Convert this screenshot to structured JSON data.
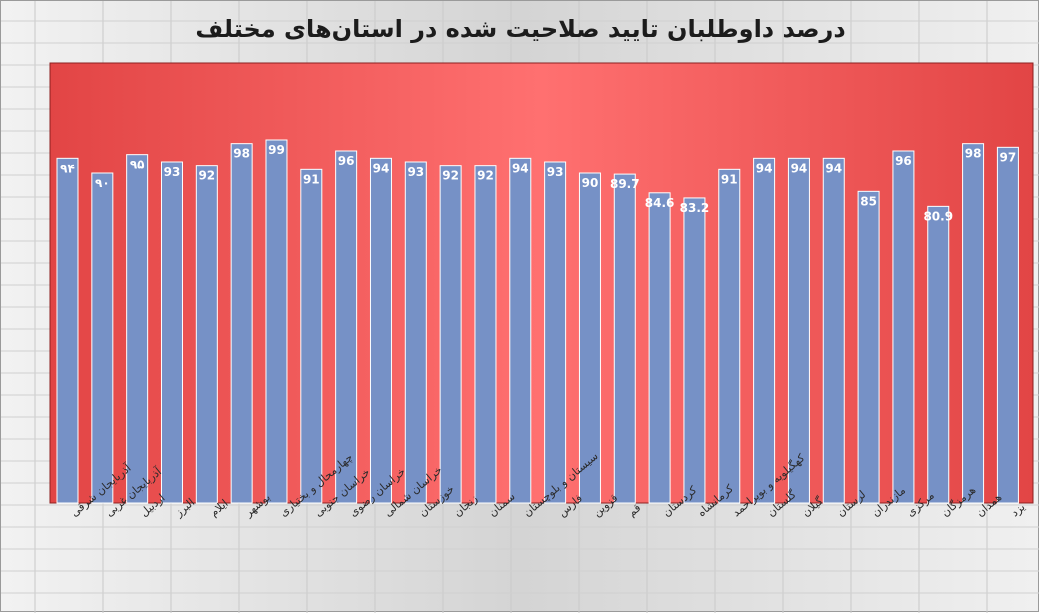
{
  "chart_data": {
    "type": "bar",
    "title": "درصد داوطلبان تایید صلاحیت شده در استان‌های مختلف",
    "xlabel": "",
    "ylabel": "",
    "ylim": [
      0,
      120
    ],
    "grid": false,
    "legend": "none",
    "categories": [
      "آذربایجان شرقی",
      "آذربایجان غربی",
      "اردبیل",
      "البرز",
      "ایلام",
      "بوشهر",
      "چهارمحال و بختیاری",
      "خراسان جنوبی",
      "خراسان رضوی",
      "خراسان شمالی",
      "خوزستان",
      "زنجان",
      "سمنان",
      "سیستان و بلوچستان",
      "فارس",
      "قزوین",
      "قم",
      "کردستان",
      "کرمانشاه",
      "کهگیلویه و بویراحمد",
      "گلستان",
      "گیلان",
      "لرستان",
      "مازندران",
      "مرکزی",
      "هرمزگان",
      "همدان",
      "یزد"
    ],
    "values": [
      94,
      90,
      95,
      93,
      92,
      98,
      99,
      91,
      96,
      94,
      93,
      92,
      92,
      94,
      93,
      90,
      89.7,
      84.6,
      83.2,
      91,
      94,
      94,
      94,
      85,
      96,
      80.9,
      98,
      97
    ],
    "value_labels": [
      "۹۴",
      "۹۰",
      "۹۵",
      "93",
      "92",
      "98",
      "99",
      "91",
      "96",
      "94",
      "93",
      "92",
      "92",
      "94",
      "93",
      "90",
      "89.7",
      "84.6",
      "83.2",
      "91",
      "94",
      "94",
      "94",
      "85",
      "96",
      "80.9",
      "98",
      "97"
    ],
    "colors": {
      "bar_fill": "#7691c6",
      "bar_edge": "#ffffff",
      "plot_area_light": "#ff7070",
      "plot_area_dark": "#e24545",
      "label_text": "#ffffff"
    }
  }
}
